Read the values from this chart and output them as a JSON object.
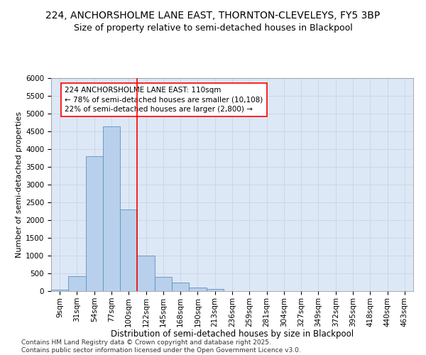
{
  "title1": "224, ANCHORSHOLME LANE EAST, THORNTON-CLEVELEYS, FY5 3BP",
  "title2": "Size of property relative to semi-detached houses in Blackpool",
  "xlabel": "Distribution of semi-detached houses by size in Blackpool",
  "ylabel": "Number of semi-detached properties",
  "categories": [
    "9sqm",
    "31sqm",
    "54sqm",
    "77sqm",
    "100sqm",
    "122sqm",
    "145sqm",
    "168sqm",
    "190sqm",
    "213sqm",
    "236sqm",
    "259sqm",
    "281sqm",
    "304sqm",
    "327sqm",
    "349sqm",
    "372sqm",
    "395sqm",
    "418sqm",
    "440sqm",
    "463sqm"
  ],
  "values": [
    50,
    430,
    3800,
    4650,
    2300,
    1000,
    400,
    240,
    110,
    70,
    0,
    0,
    0,
    0,
    0,
    0,
    0,
    0,
    0,
    0,
    0
  ],
  "bar_color": "#b8d0eb",
  "bar_edge_color": "#6090c0",
  "vline_x": 4.5,
  "vline_color": "red",
  "annotation_text": "224 ANCHORSHOLME LANE EAST: 110sqm\n← 78% of semi-detached houses are smaller (10,108)\n22% of semi-detached houses are larger (2,800) →",
  "annotation_box_color": "white",
  "annotation_box_edge": "red",
  "ylim": [
    0,
    6000
  ],
  "yticks": [
    0,
    500,
    1000,
    1500,
    2000,
    2500,
    3000,
    3500,
    4000,
    4500,
    5000,
    5500,
    6000
  ],
  "grid_color": "#c8d4e8",
  "bg_color": "#dce8f5",
  "footnote": "Contains HM Land Registry data © Crown copyright and database right 2025.\nContains public sector information licensed under the Open Government Licence v3.0.",
  "title1_fontsize": 10,
  "title2_fontsize": 9,
  "xlabel_fontsize": 8.5,
  "ylabel_fontsize": 8,
  "tick_fontsize": 7.5,
  "annotation_fontsize": 7.5,
  "footnote_fontsize": 6.5
}
